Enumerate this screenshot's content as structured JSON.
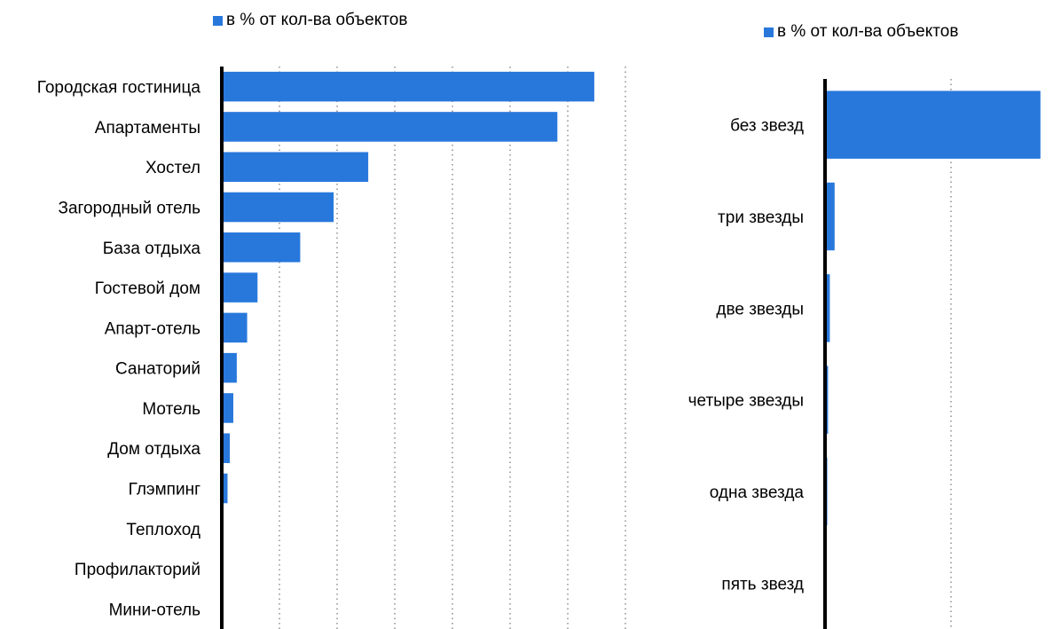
{
  "colors": {
    "bar": "#2878dc",
    "axis": "#000000",
    "grid": "#555555"
  },
  "chart_data": [
    {
      "type": "bar",
      "orientation": "horizontal",
      "legend": "в % от кол-ва объектов",
      "legend_position": "top",
      "grid": true,
      "categories": [
        "Городская гостиница",
        "Апартаменты",
        "Хостел",
        "Загородный отель",
        "База отдыха",
        "Гостевой дом",
        "Апарт-отель",
        "Санаторий",
        "Мотель",
        "Дом отдыха",
        "Глэмпинг",
        "Теплоход",
        "Профилакторий",
        "Мини-отель"
      ],
      "series": [
        {
          "name": "в % от кол-ва объектов",
          "values": [
            32.3,
            29.1,
            12.7,
            9.7,
            6.8,
            3.1,
            2.2,
            1.3,
            1.0,
            0.7,
            0.5,
            0.05,
            0.05,
            0.05
          ]
        }
      ],
      "xlim": [
        0,
        35
      ]
    },
    {
      "type": "bar",
      "orientation": "horizontal",
      "legend": "в % от кол-ва объектов",
      "legend_position": "top-right",
      "grid": true,
      "categories": [
        "без звезд",
        "три звезды",
        "две звезды",
        "четыре звезды",
        "одна звезда",
        "пять звезд"
      ],
      "series": [
        {
          "name": "в % от кол-ва объектов",
          "values": [
            85.5,
            3.8,
            1.9,
            1.2,
            0.9,
            0.1
          ]
        }
      ],
      "xlim": [
        0,
        100
      ]
    }
  ]
}
